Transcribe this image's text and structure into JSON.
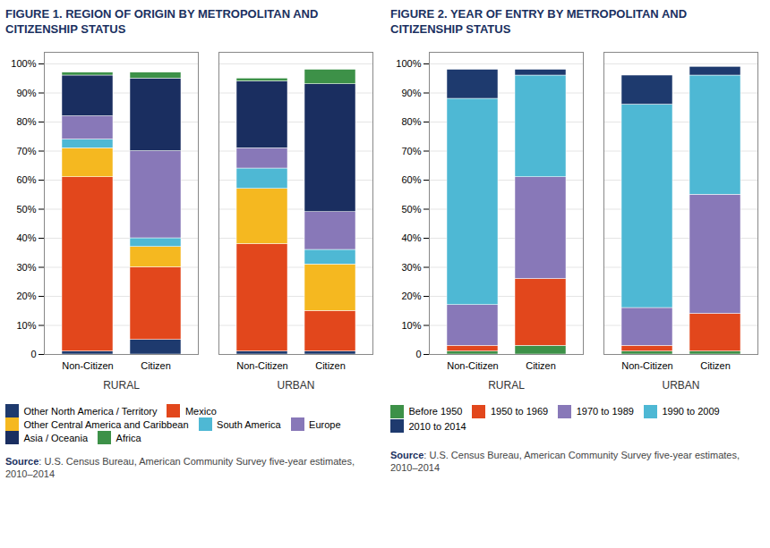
{
  "chart_data": [
    {
      "type": "bar",
      "stacked": true,
      "title": "FIGURE 1. REGION OF ORIGIN BY METROPOLITAN AND\nCITIZENSHIP STATUS",
      "categories": [
        "Non-Citizen",
        "Citizen",
        "Non-Citizen",
        "Citizen"
      ],
      "annotations": [
        "RURAL",
        "URBAN"
      ],
      "series": [
        {
          "name": "Other North America / Territory",
          "color": "#1e3a6e",
          "values": [
            1,
            5,
            1,
            1
          ]
        },
        {
          "name": "Mexico",
          "color": "#e2471c",
          "values": [
            60,
            25,
            37,
            14
          ]
        },
        {
          "name": "Other Central America and Caribbean",
          "color": "#f5b820",
          "values": [
            10,
            7,
            19,
            16
          ]
        },
        {
          "name": "South America",
          "color": "#4eb8d4",
          "values": [
            3,
            3,
            7,
            5
          ]
        },
        {
          "name": "Europe",
          "color": "#8878b8",
          "values": [
            8,
            30,
            7,
            13
          ]
        },
        {
          "name": "Asia / Oceania",
          "color": "#1a2e60",
          "values": [
            14,
            25,
            23,
            44
          ]
        },
        {
          "name": "Africa",
          "color": "#3d9148",
          "values": [
            1,
            2,
            1,
            5
          ]
        }
      ],
      "ylim": [
        0,
        104
      ],
      "yticks": [
        0,
        {
          "value": 10,
          "label": "10%"
        },
        {
          "value": 20,
          "label": "20%"
        },
        {
          "value": 30,
          "label": "30%"
        },
        {
          "value": 40,
          "label": "40%"
        },
        {
          "value": 50,
          "label": "50%"
        },
        {
          "value": 60,
          "label": "60%"
        },
        {
          "value": 70,
          "label": "70%"
        },
        {
          "value": 80,
          "label": "80%"
        },
        {
          "value": 90,
          "label": "90%"
        },
        {
          "value": 100,
          "label": "100%"
        }
      ],
      "grid": true,
      "legend": "bottom",
      "caption": "Source: U.S. Census Bureau, American Community Survey five-year estimates,\n2010–2014"
    },
    {
      "type": "bar",
      "stacked": true,
      "title": "FIGURE 2. YEAR OF ENTRY BY METROPOLITAN AND\nCITIZENSHIP STATUS",
      "categories": [
        "Non-Citizen",
        "Citizen",
        "Non-Citizen",
        "Citizen"
      ],
      "annotations": [
        "RURAL",
        "URBAN"
      ],
      "series": [
        {
          "name": "Before 1950",
          "color": "#3d9148",
          "values": [
            1,
            3,
            1,
            1
          ]
        },
        {
          "name": "1950 to 1969",
          "color": "#e2471c",
          "values": [
            2,
            23,
            2,
            13
          ]
        },
        {
          "name": "1970 to 1989",
          "color": "#8878b8",
          "values": [
            14,
            35,
            13,
            41
          ]
        },
        {
          "name": "1990 to 2009",
          "color": "#4eb8d4",
          "values": [
            71,
            35,
            70,
            41
          ]
        },
        {
          "name": "2010 to 2014",
          "color": "#1e3a6e",
          "values": [
            10,
            2,
            10,
            3
          ]
        }
      ],
      "ylim": [
        0,
        104
      ],
      "yticks": [
        0,
        {
          "value": 10,
          "label": "10%"
        },
        {
          "value": 20,
          "label": "20%"
        },
        {
          "value": 30,
          "label": "30%"
        },
        {
          "value": 40,
          "label": "40%"
        },
        {
          "value": 50,
          "label": "50%"
        },
        {
          "value": 60,
          "label": "60%"
        },
        {
          "value": 70,
          "label": "70%"
        },
        {
          "value": 80,
          "label": "80%"
        },
        {
          "value": 90,
          "label": "90%"
        },
        {
          "value": 100,
          "label": "100%"
        }
      ],
      "grid": true,
      "legend": "bottom",
      "caption": "Source: U.S. Census Bureau, American Community Survey five-year estimates,\n2010–2014"
    }
  ]
}
